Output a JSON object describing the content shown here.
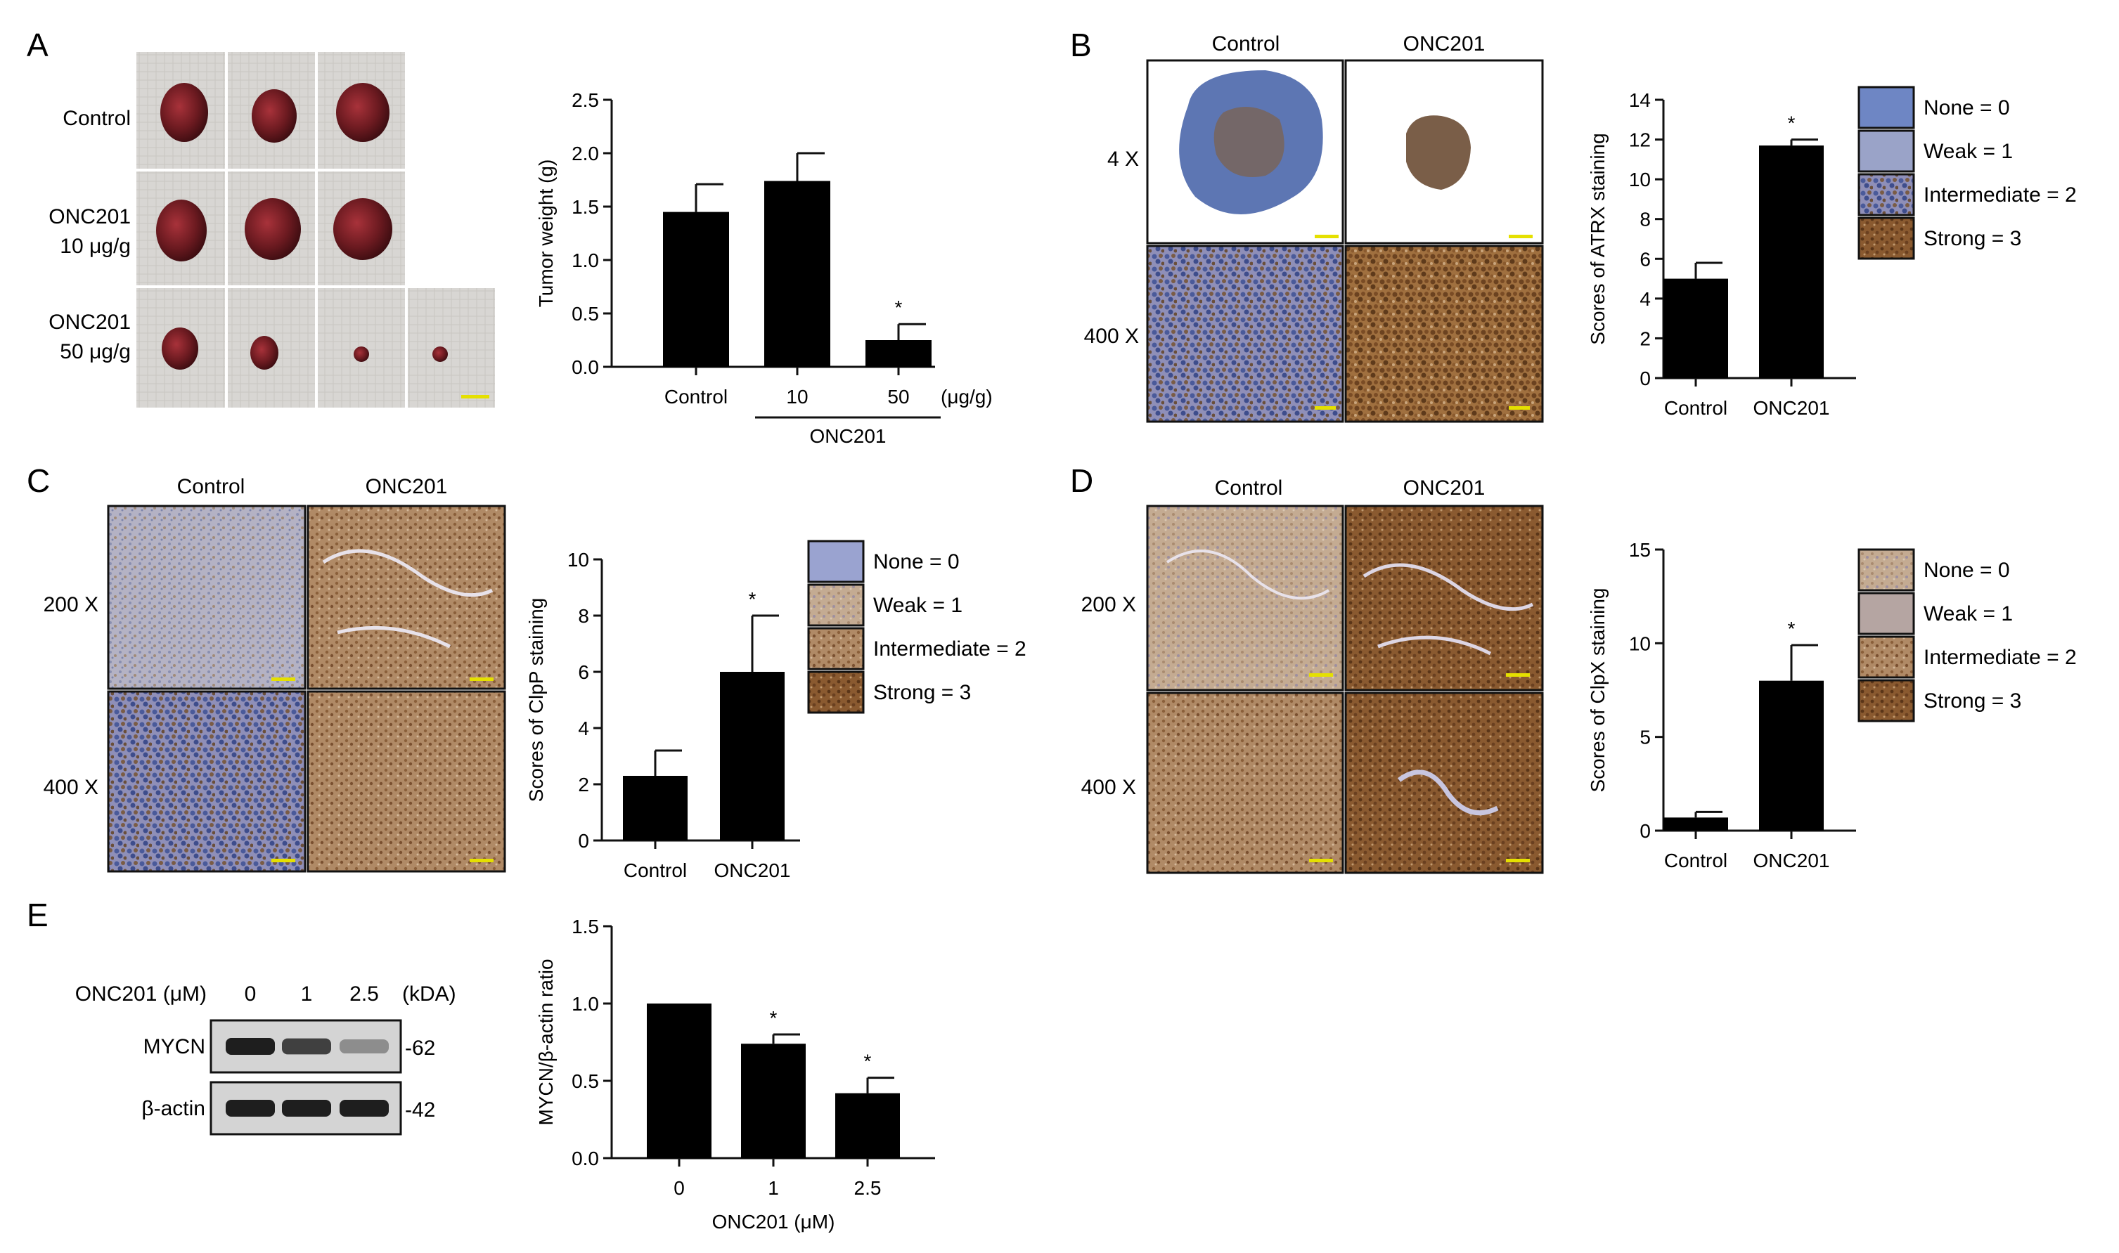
{
  "colors": {
    "bar": "#000000",
    "scale_bar": "#e5e000",
    "tissue_dark": "#4a1417",
    "background_gauze": "#d9d6d2",
    "ihc_blue": "#6e86bd",
    "ihc_brown": "#8b5a2b"
  },
  "panels": {
    "A": {
      "letter": "A",
      "row_labels": [
        "Control",
        "ONC201",
        "10 μg/g",
        "ONC201",
        "50 μg/g"
      ]
    },
    "B": {
      "letter": "B",
      "column_labels": [
        "Control",
        "ONC201"
      ],
      "magnifications": [
        "4 X",
        "400 X"
      ],
      "legend": [
        "None = 0",
        "Weak = 1",
        "Intermediate = 2",
        "Strong = 3"
      ]
    },
    "C": {
      "letter": "C",
      "column_labels": [
        "Control",
        "ONC201"
      ],
      "magnifications": [
        "200 X",
        "400 X"
      ],
      "legend": [
        "None = 0",
        "Weak = 1",
        "Intermediate = 2",
        "Strong = 3"
      ]
    },
    "D": {
      "letter": "D",
      "column_labels": [
        "Control",
        "ONC201"
      ],
      "magnifications": [
        "200 X",
        "400 X"
      ],
      "legend": [
        "None = 0",
        "Weak = 1",
        "Intermediate = 2",
        "Strong = 3"
      ]
    },
    "E": {
      "letter": "E",
      "blot": {
        "treatment_label": "ONC201 (μM)",
        "doses": [
          "0",
          "1",
          "2.5"
        ],
        "unit": "(kDA)",
        "bands": [
          {
            "label": "MYCN",
            "kda": "-62",
            "intensity": [
              1.0,
              0.8,
              0.35
            ]
          },
          {
            "label": "β-actin",
            "kda": "-42",
            "intensity": [
              1.0,
              1.0,
              1.0
            ]
          }
        ]
      }
    }
  },
  "chart_data": [
    {
      "id": "A",
      "type": "bar",
      "categories": [
        "Control",
        "10",
        "50"
      ],
      "values": [
        1.45,
        1.74,
        0.25
      ],
      "errors": [
        0.26,
        0.26,
        0.15
      ],
      "significance": [
        "",
        "",
        "*"
      ],
      "ylabel": "Tumor weight (g)",
      "ylim": [
        0,
        2.5
      ],
      "yticks": [
        "0.0",
        "0.5",
        "1.0",
        "1.5",
        "2.0",
        "2.5"
      ],
      "unit_label": "(μg/g)",
      "group_label": "ONC201"
    },
    {
      "id": "B",
      "type": "bar",
      "categories": [
        "Control",
        "ONC201"
      ],
      "values": [
        5.0,
        11.7
      ],
      "errors": [
        0.8,
        0.3
      ],
      "significance": [
        "",
        "*"
      ],
      "ylabel": "Scores of ATRX staining",
      "ylim": [
        0,
        14
      ],
      "yticks": [
        "0",
        "2",
        "4",
        "6",
        "8",
        "10",
        "12",
        "14"
      ]
    },
    {
      "id": "C",
      "type": "bar",
      "categories": [
        "Control",
        "ONC201"
      ],
      "values": [
        2.3,
        6.0
      ],
      "errors": [
        0.9,
        2.0
      ],
      "significance": [
        "",
        "*"
      ],
      "ylabel": "Scores of ClpP staining",
      "ylim": [
        0,
        10
      ],
      "yticks": [
        "0",
        "2",
        "4",
        "6",
        "8",
        "10"
      ]
    },
    {
      "id": "D",
      "type": "bar",
      "categories": [
        "Control",
        "ONC201"
      ],
      "values": [
        0.7,
        8.0
      ],
      "errors": [
        0.3,
        1.9
      ],
      "significance": [
        "",
        "*"
      ],
      "ylabel": "Scores of ClpX staining",
      "ylim": [
        0,
        15
      ],
      "yticks": [
        "0",
        "5",
        "10",
        "15"
      ]
    },
    {
      "id": "E",
      "type": "bar",
      "categories": [
        "0",
        "1",
        "2.5"
      ],
      "values": [
        1.0,
        0.74,
        0.42
      ],
      "errors": [
        0.0,
        0.06,
        0.1
      ],
      "significance": [
        "",
        "*",
        "*"
      ],
      "ylabel": "MYCN/β-actin ratio",
      "xlabel": "ONC201 (μM)",
      "ylim": [
        0,
        1.5
      ],
      "yticks": [
        "0.0",
        "0.5",
        "1.0",
        "1.5"
      ]
    }
  ]
}
